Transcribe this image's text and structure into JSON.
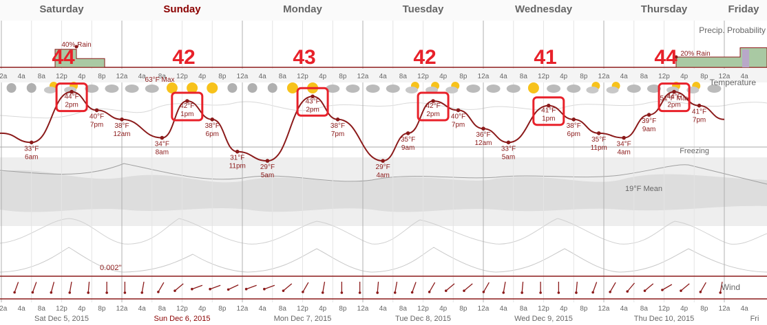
{
  "days": [
    {
      "label": "Saturday",
      "date": "Sat Dec 5, 2015",
      "big_temp": "44",
      "highlight": false
    },
    {
      "label": "Sunday",
      "date": "Sun Dec 6, 2015",
      "big_temp": "42",
      "highlight": true
    },
    {
      "label": "Monday",
      "date": "Mon Dec 7, 2015",
      "big_temp": "43",
      "highlight": false
    },
    {
      "label": "Tuesday",
      "date": "Tue Dec 8, 2015",
      "big_temp": "42",
      "highlight": false
    },
    {
      "label": "Wednesday",
      "date": "Wed Dec 9, 2015",
      "big_temp": "41",
      "highlight": false
    },
    {
      "label": "Thursday",
      "date": "Thu Dec 10, 2015",
      "big_temp": "44",
      "highlight": false
    },
    {
      "label": "Friday",
      "date": "Fri",
      "big_temp": "",
      "highlight": false
    }
  ],
  "hour_labels": [
    "12a",
    "4a",
    "8a",
    "12p",
    "4p",
    "8p"
  ],
  "precip_title": "Precip. Probability",
  "temp_title": "Temperature",
  "wind_title": "Wind",
  "max_label_1": "63°F Max",
  "max_label_2": "51°F Max",
  "freezing_label": "Freezing",
  "mean_label": "19°F Mean",
  "precip_amount": "0.002\"",
  "colors": {
    "accent": "#8b0000",
    "highlight_box": "#e8212a",
    "day_text": "#666666",
    "day_highlight": "#8b0000",
    "temp_line": "#8b1a1a",
    "precip_fill": "#a9c9a3"
  },
  "chart_data": {
    "type": "line",
    "title": "",
    "xlabel": "",
    "ylabel": "",
    "series": [
      {
        "name": "Temperature",
        "unit": "°F",
        "x": [
          "Sat 12a",
          "Sat 6am",
          "Sat 2pm",
          "Sat 7pm",
          "Sun 12am",
          "Sun 8am",
          "Sun 1pm",
          "Sun 6pm",
          "Sun 11pm",
          "Mon 5am",
          "Mon 2pm",
          "Mon 7pm",
          "Tue 4am",
          "Tue 9am",
          "Tue 2pm",
          "Tue 7pm",
          "Tue 12am",
          "Wed 5am",
          "Wed 1pm",
          "Wed 6pm",
          "Wed 11pm",
          "Thu 4am",
          "Thu 9am",
          "Thu 2pm",
          "Thu 7pm",
          "Fri 12a"
        ],
        "values": [
          35,
          33,
          44,
          40,
          38,
          34,
          42,
          38,
          31,
          29,
          43,
          38,
          29,
          35,
          42,
          40,
          36,
          33,
          41,
          38,
          35,
          34,
          39,
          44,
          41,
          38
        ]
      }
    ],
    "point_labels": [
      {
        "temp": "33°F",
        "time": "6am",
        "boxed": false
      },
      {
        "temp": "44°F",
        "time": "2pm",
        "boxed": true
      },
      {
        "temp": "40°F",
        "time": "7pm",
        "boxed": false
      },
      {
        "temp": "38°F",
        "time": "12am",
        "boxed": false
      },
      {
        "temp": "34°F",
        "time": "8am",
        "boxed": false
      },
      {
        "temp": "42°F",
        "time": "1pm",
        "boxed": true
      },
      {
        "temp": "38°F",
        "time": "6pm",
        "boxed": false
      },
      {
        "temp": "31°F",
        "time": "11pm",
        "boxed": false
      },
      {
        "temp": "29°F",
        "time": "5am",
        "boxed": false
      },
      {
        "temp": "43°F",
        "time": "2pm",
        "boxed": true
      },
      {
        "temp": "38°F",
        "time": "7pm",
        "boxed": false
      },
      {
        "temp": "29°F",
        "time": "4am",
        "boxed": false
      },
      {
        "temp": "35°F",
        "time": "9am",
        "boxed": false
      },
      {
        "temp": "42°F",
        "time": "2pm",
        "boxed": true
      },
      {
        "temp": "40°F",
        "time": "7pm",
        "boxed": false
      },
      {
        "temp": "36°F",
        "time": "12am",
        "boxed": false
      },
      {
        "temp": "33°F",
        "time": "5am",
        "boxed": false
      },
      {
        "temp": "41°F",
        "time": "1pm",
        "boxed": true
      },
      {
        "temp": "38°F",
        "time": "6pm",
        "boxed": false
      },
      {
        "temp": "35°F",
        "time": "11pm",
        "boxed": false
      },
      {
        "temp": "34°F",
        "time": "4am",
        "boxed": false
      },
      {
        "temp": "39°F",
        "time": "9am",
        "boxed": false
      },
      {
        "temp": "44°F",
        "time": "2pm",
        "boxed": true
      },
      {
        "temp": "41°F",
        "time": "7pm",
        "boxed": false
      }
    ],
    "precip_probability": [
      {
        "label": "40% Rain",
        "value": 40
      },
      {
        "label": "20% Rain",
        "value": 20
      }
    ],
    "grid": true
  }
}
